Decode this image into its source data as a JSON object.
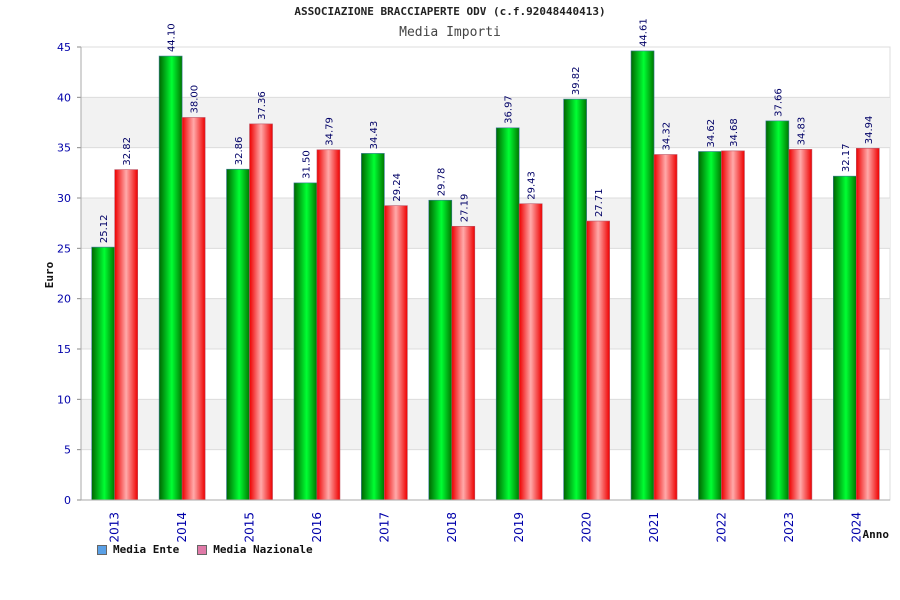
{
  "chart_data": {
    "type": "bar",
    "title": "ASSOCIAZIONE BRACCIAPERTE ODV (c.f.92048440413)",
    "subtitle": "Media Importi",
    "xlabel": "Anno",
    "ylabel": "Euro",
    "ylim": [
      0,
      45
    ],
    "yticks": [
      0,
      5,
      10,
      15,
      20,
      25,
      30,
      35,
      40,
      45
    ],
    "categories": [
      "2013",
      "2014",
      "2015",
      "2016",
      "2017",
      "2018",
      "2019",
      "2020",
      "2021",
      "2022",
      "2023",
      "2024"
    ],
    "series": [
      {
        "name": "Media Ente",
        "values": [
          25.12,
          44.1,
          32.86,
          31.5,
          34.43,
          29.78,
          36.97,
          39.82,
          44.61,
          34.62,
          37.66,
          32.17
        ],
        "labels": [
          "25.12",
          "44.10",
          "32.86",
          "31.50",
          "34.43",
          "29.78",
          "36.97",
          "39.82",
          "44.61",
          "34.62",
          "37.66",
          "32.17"
        ]
      },
      {
        "name": "Media Nazionale",
        "values": [
          32.82,
          38.0,
          37.36,
          34.79,
          29.24,
          27.19,
          29.43,
          27.71,
          34.32,
          34.68,
          34.83,
          34.94
        ],
        "labels": [
          "32.82",
          "38.00",
          "37.36",
          "34.79",
          "29.24",
          "27.19",
          "29.43",
          "27.71",
          "34.32",
          "34.68",
          "34.83",
          "34.94"
        ]
      }
    ],
    "grid": true,
    "legend_position": "bottom-left"
  },
  "legend": {
    "items": [
      {
        "label": "Media Ente",
        "color": "#5aa0e6"
      },
      {
        "label": "Media Nazionale",
        "color": "#e07aa8"
      }
    ]
  },
  "colors": {
    "ente_dark": "#006600",
    "ente_light": "#00ff33",
    "naz_dark": "#ee0000",
    "naz_light": "#ffaaaa",
    "axis_text": "#0000aa",
    "value_text": "#000066",
    "band": "#f2f2f2"
  }
}
